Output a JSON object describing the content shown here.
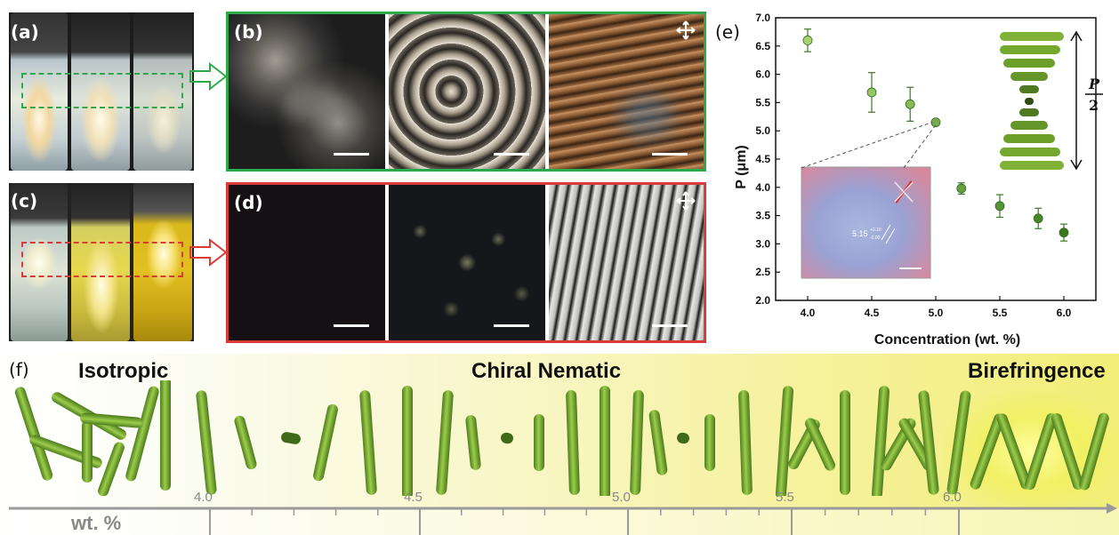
{
  "panels": {
    "a": "(a)",
    "b": "(b)",
    "c": "(c)",
    "d": "(d)",
    "e": "(e)",
    "f": "(f)"
  },
  "colors": {
    "green_frame": "#2fa84a",
    "red_frame": "#d93a3a",
    "rod_green": "#7fb236"
  },
  "chart_data": {
    "type": "scatter",
    "xlabel": "Concentration (wt. %)",
    "ylabel": "P (μm)",
    "xlim": [
      3.75,
      6.25
    ],
    "ylim": [
      2.0,
      7.0
    ],
    "xticks": [
      "4.0",
      "4.5",
      "5.0",
      "5.5",
      "6.0"
    ],
    "yticks": [
      "2.0",
      "2.5",
      "3.0",
      "3.5",
      "4.0",
      "4.5",
      "5.0",
      "5.5",
      "6.0",
      "6.5",
      "7.0"
    ],
    "points": [
      {
        "x": 4.0,
        "y": 6.6,
        "err": 0.2
      },
      {
        "x": 4.5,
        "y": 5.68,
        "err": 0.35
      },
      {
        "x": 4.8,
        "y": 5.47,
        "err": 0.3
      },
      {
        "x": 5.0,
        "y": 5.15,
        "err": 0.05
      },
      {
        "x": 5.2,
        "y": 3.98,
        "err": 0.1
      },
      {
        "x": 5.5,
        "y": 3.67,
        "err": 0.2
      },
      {
        "x": 5.8,
        "y": 3.45,
        "err": 0.18
      },
      {
        "x": 6.0,
        "y": 3.2,
        "err": 0.15
      }
    ],
    "inset_annotation": "5.15",
    "inset_sup": "+0.10",
    "inset_sub": "-0.00",
    "pitch_label_top": "P",
    "pitch_label_bottom": "2"
  },
  "phases": {
    "isotropic": "Isotropic",
    "chiral": "Chiral Nematic",
    "birefringence": "Birefringence"
  },
  "axis": {
    "ticks": [
      "4.0",
      "4.5",
      "5.0",
      "5.5",
      "6.0"
    ],
    "unit": "wt. %"
  }
}
